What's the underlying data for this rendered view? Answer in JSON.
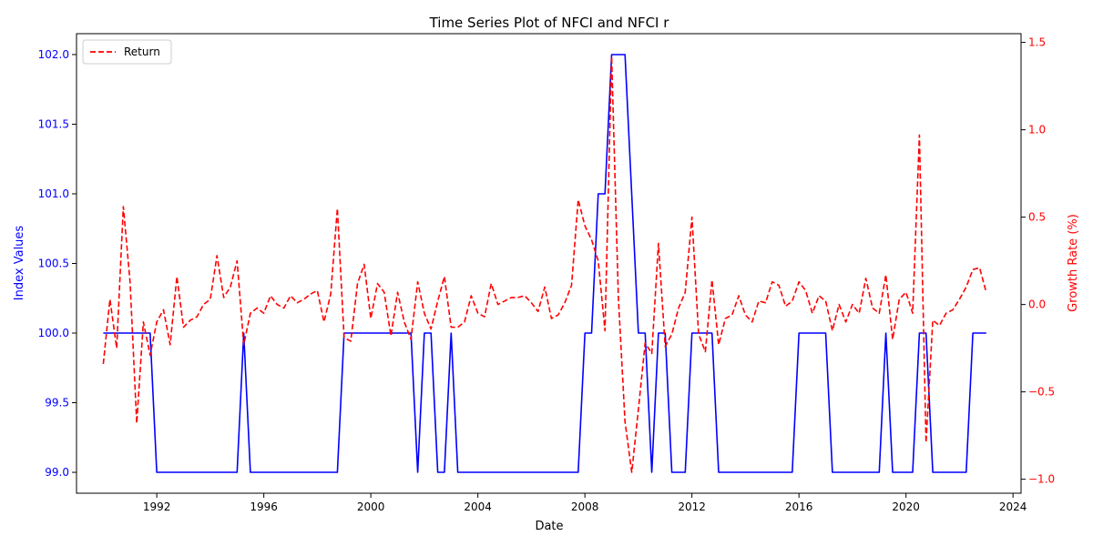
{
  "chart_data": {
    "type": "line",
    "title": "Time Series Plot of NFCI and NFCI r",
    "xlabel": "Date",
    "ylabel_left": "Index Values",
    "ylabel_right": "Growth Rate (%)",
    "xlim": [
      1989.0,
      2024.3
    ],
    "ylim_left": [
      98.85,
      102.15
    ],
    "ylim_right": [
      -1.08,
      1.55
    ],
    "x_ticks": [
      1992,
      1996,
      2000,
      2004,
      2008,
      2012,
      2016,
      2020,
      2024
    ],
    "y_left_ticks": [
      "99.0",
      "99.5",
      "100.0",
      "100.5",
      "101.0",
      "101.5",
      "102.0"
    ],
    "y_right_ticks": [
      "−1.0",
      "−0.5",
      "0.0",
      "0.5",
      "1.0",
      "1.5"
    ],
    "grid": false,
    "legend_position": "top-left",
    "colors": {
      "index": "#0000ff",
      "return": "#ff0000",
      "left_axis": "#0000ff",
      "right_axis": "#ff0000"
    },
    "series": [
      {
        "axis": "left",
        "style": "solid",
        "points": [
          [
            1990.0,
            100
          ],
          [
            1991.75,
            100
          ],
          [
            1992.0,
            99
          ],
          [
            1995.0,
            99
          ],
          [
            1995.25,
            100
          ],
          [
            1995.5,
            99
          ],
          [
            1998.75,
            99
          ],
          [
            1999.0,
            100
          ],
          [
            2001.5,
            100
          ],
          [
            2001.75,
            99
          ],
          [
            2002.0,
            100
          ],
          [
            2002.25,
            100
          ],
          [
            2002.5,
            99
          ],
          [
            2002.75,
            99
          ],
          [
            2003.0,
            100
          ],
          [
            2003.25,
            99
          ],
          [
            2007.75,
            99
          ],
          [
            2008.0,
            100
          ],
          [
            2008.25,
            100
          ],
          [
            2008.5,
            101
          ],
          [
            2008.75,
            101
          ],
          [
            2009.0,
            102
          ],
          [
            2009.5,
            102
          ],
          [
            2010.0,
            100
          ],
          [
            2010.25,
            100
          ],
          [
            2010.5,
            99
          ],
          [
            2010.75,
            100
          ],
          [
            2011.0,
            100
          ],
          [
            2011.25,
            99
          ],
          [
            2011.75,
            99
          ],
          [
            2012.0,
            100
          ],
          [
            2012.75,
            100
          ],
          [
            2013.0,
            99
          ],
          [
            2015.75,
            99
          ],
          [
            2016.0,
            100
          ],
          [
            2017.0,
            100
          ],
          [
            2017.25,
            99
          ],
          [
            2019.0,
            99
          ],
          [
            2019.25,
            100
          ],
          [
            2019.5,
            99
          ],
          [
            2020.25,
            99
          ],
          [
            2020.5,
            100
          ],
          [
            2020.75,
            100
          ],
          [
            2021.0,
            99
          ],
          [
            2022.25,
            99
          ],
          [
            2022.5,
            100
          ],
          [
            2023.0,
            100
          ]
        ]
      },
      {
        "name": "Return",
        "axis": "right",
        "style": "dashed",
        "points": [
          [
            1990.0,
            -0.34
          ],
          [
            1990.25,
            0.03
          ],
          [
            1990.5,
            -0.25
          ],
          [
            1990.75,
            0.56
          ],
          [
            1991.0,
            0.13
          ],
          [
            1991.25,
            -0.68
          ],
          [
            1991.5,
            -0.1
          ],
          [
            1991.75,
            -0.29
          ],
          [
            1992.0,
            -0.1
          ],
          [
            1992.25,
            -0.03
          ],
          [
            1992.5,
            -0.23
          ],
          [
            1992.75,
            0.16
          ],
          [
            1993.0,
            -0.13
          ],
          [
            1993.25,
            -0.09
          ],
          [
            1993.5,
            -0.07
          ],
          [
            1993.75,
            0.0
          ],
          [
            1994.0,
            0.03
          ],
          [
            1994.25,
            0.28
          ],
          [
            1994.5,
            0.04
          ],
          [
            1994.75,
            0.1
          ],
          [
            1995.0,
            0.25
          ],
          [
            1995.25,
            -0.23
          ],
          [
            1995.5,
            -0.05
          ],
          [
            1995.75,
            -0.02
          ],
          [
            1996.0,
            -0.05
          ],
          [
            1996.25,
            0.05
          ],
          [
            1996.5,
            0.0
          ],
          [
            1996.75,
            -0.02
          ],
          [
            1997.0,
            0.05
          ],
          [
            1997.25,
            0.01
          ],
          [
            1997.5,
            0.03
          ],
          [
            1997.75,
            0.06
          ],
          [
            1998.0,
            0.08
          ],
          [
            1998.25,
            -0.1
          ],
          [
            1998.5,
            0.06
          ],
          [
            1998.75,
            0.55
          ],
          [
            1999.0,
            -0.19
          ],
          [
            1999.25,
            -0.21
          ],
          [
            1999.5,
            0.12
          ],
          [
            1999.75,
            0.23
          ],
          [
            2000.0,
            -0.08
          ],
          [
            2000.25,
            0.12
          ],
          [
            2000.5,
            0.07
          ],
          [
            2000.75,
            -0.18
          ],
          [
            2001.0,
            0.07
          ],
          [
            2001.25,
            -0.1
          ],
          [
            2001.5,
            -0.2
          ],
          [
            2001.75,
            0.13
          ],
          [
            2002.0,
            -0.05
          ],
          [
            2002.25,
            -0.14
          ],
          [
            2002.5,
            0.02
          ],
          [
            2002.75,
            0.16
          ],
          [
            2003.0,
            -0.13
          ],
          [
            2003.25,
            -0.13
          ],
          [
            2003.5,
            -0.1
          ],
          [
            2003.75,
            0.05
          ],
          [
            2004.0,
            -0.05
          ],
          [
            2004.25,
            -0.07
          ],
          [
            2004.5,
            0.12
          ],
          [
            2004.75,
            0.0
          ],
          [
            2005.0,
            0.02
          ],
          [
            2005.25,
            0.04
          ],
          [
            2005.5,
            0.04
          ],
          [
            2005.75,
            0.05
          ],
          [
            2006.0,
            0.01
          ],
          [
            2006.25,
            -0.04
          ],
          [
            2006.5,
            0.1
          ],
          [
            2006.75,
            -0.08
          ],
          [
            2007.0,
            -0.06
          ],
          [
            2007.25,
            0.01
          ],
          [
            2007.5,
            0.11
          ],
          [
            2007.75,
            0.6
          ],
          [
            2008.0,
            0.45
          ],
          [
            2008.25,
            0.37
          ],
          [
            2008.5,
            0.25
          ],
          [
            2008.75,
            -0.15
          ],
          [
            2009.0,
            1.42
          ],
          [
            2009.25,
            0.04
          ],
          [
            2009.5,
            -0.67
          ],
          [
            2009.75,
            -0.96
          ],
          [
            2010.0,
            -0.6
          ],
          [
            2010.25,
            -0.22
          ],
          [
            2010.5,
            -0.28
          ],
          [
            2010.75,
            0.35
          ],
          [
            2011.0,
            -0.24
          ],
          [
            2011.25,
            -0.17
          ],
          [
            2011.5,
            -0.02
          ],
          [
            2011.75,
            0.07
          ],
          [
            2012.0,
            0.5
          ],
          [
            2012.25,
            -0.17
          ],
          [
            2012.5,
            -0.27
          ],
          [
            2012.75,
            0.14
          ],
          [
            2013.0,
            -0.23
          ],
          [
            2013.25,
            -0.08
          ],
          [
            2013.5,
            -0.06
          ],
          [
            2013.75,
            0.05
          ],
          [
            2014.0,
            -0.06
          ],
          [
            2014.25,
            -0.1
          ],
          [
            2014.5,
            0.02
          ],
          [
            2014.75,
            0.01
          ],
          [
            2015.0,
            0.13
          ],
          [
            2015.25,
            0.11
          ],
          [
            2015.5,
            -0.01
          ],
          [
            2015.75,
            0.02
          ],
          [
            2016.0,
            0.13
          ],
          [
            2016.25,
            0.08
          ],
          [
            2016.5,
            -0.05
          ],
          [
            2016.75,
            0.05
          ],
          [
            2017.0,
            0.02
          ],
          [
            2017.25,
            -0.15
          ],
          [
            2017.5,
            0.0
          ],
          [
            2017.75,
            -0.1
          ],
          [
            2018.0,
            0.0
          ],
          [
            2018.25,
            -0.05
          ],
          [
            2018.5,
            0.15
          ],
          [
            2018.75,
            -0.02
          ],
          [
            2019.0,
            -0.05
          ],
          [
            2019.25,
            0.17
          ],
          [
            2019.5,
            -0.2
          ],
          [
            2019.75,
            0.03
          ],
          [
            2020.0,
            0.07
          ],
          [
            2020.25,
            -0.05
          ],
          [
            2020.5,
            0.97
          ],
          [
            2020.75,
            -0.79
          ],
          [
            2021.0,
            -0.09
          ],
          [
            2021.25,
            -0.12
          ],
          [
            2021.5,
            -0.05
          ],
          [
            2021.75,
            -0.03
          ],
          [
            2022.0,
            0.03
          ],
          [
            2022.25,
            0.1
          ],
          [
            2022.5,
            0.2
          ],
          [
            2022.75,
            0.21
          ],
          [
            2023.0,
            0.07
          ]
        ]
      }
    ]
  }
}
